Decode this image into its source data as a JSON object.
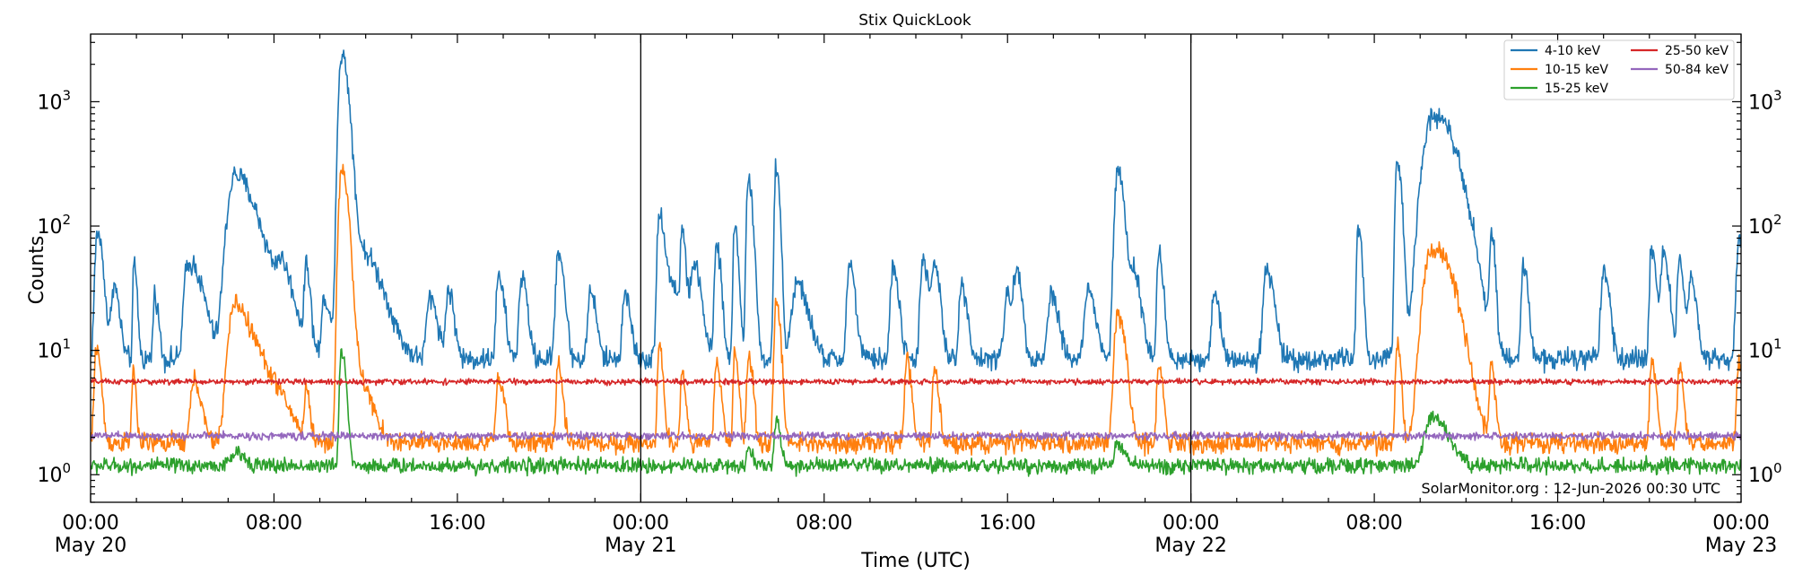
{
  "chart_data": {
    "type": "line",
    "title": "Stix QuickLook",
    "xlabel": "Time (UTC)",
    "ylabel": "Counts",
    "yscale": "log",
    "ylim": [
      0.6,
      3500
    ],
    "xlim_hours": [
      0,
      72
    ],
    "y_tick_labels": [
      {
        "value": 1,
        "base": "10",
        "exp": "0"
      },
      {
        "value": 10,
        "base": "10",
        "exp": "1"
      },
      {
        "value": 100,
        "base": "10",
        "exp": "2"
      },
      {
        "value": 1000,
        "base": "10",
        "exp": "3"
      }
    ],
    "x_ticks": [
      {
        "hour": 0,
        "time": "00:00",
        "date": "May 20"
      },
      {
        "hour": 8,
        "time": "08:00",
        "date": ""
      },
      {
        "hour": 16,
        "time": "16:00",
        "date": ""
      },
      {
        "hour": 24,
        "time": "00:00",
        "date": "May 21"
      },
      {
        "hour": 32,
        "time": "08:00",
        "date": ""
      },
      {
        "hour": 40,
        "time": "16:00",
        "date": ""
      },
      {
        "hour": 48,
        "time": "00:00",
        "date": "May 22"
      },
      {
        "hour": 56,
        "time": "08:00",
        "date": ""
      },
      {
        "hour": 64,
        "time": "16:00",
        "date": ""
      },
      {
        "hour": 72,
        "time": "00:00",
        "date": "May 23"
      }
    ],
    "day_boundaries_hours": [
      24,
      48
    ],
    "legend_position": "top-right",
    "series": [
      {
        "name": "4-10 keV",
        "color": "#1f77b4",
        "baseline": 8.5,
        "noise": 0.1,
        "peaks": [
          {
            "t": 0.3,
            "amp": 80,
            "w": 0.15
          },
          {
            "t": 1.0,
            "amp": 25,
            "w": 0.15
          },
          {
            "t": 1.9,
            "amp": 40,
            "w": 0.08
          },
          {
            "t": 2.8,
            "amp": 20,
            "w": 0.1
          },
          {
            "t": 4.2,
            "amp": 35,
            "w": 0.2
          },
          {
            "t": 4.6,
            "amp": 25,
            "w": 0.3
          },
          {
            "t": 6.3,
            "amp": 250,
            "w": 0.45
          },
          {
            "t": 7.4,
            "amp": 40,
            "w": 0.7
          },
          {
            "t": 8.3,
            "amp": 20,
            "w": 0.25
          },
          {
            "t": 9.4,
            "amp": 40,
            "w": 0.1
          },
          {
            "t": 10.2,
            "amp": 18,
            "w": 0.15
          },
          {
            "t": 10.95,
            "amp": 2400,
            "w": 0.18
          },
          {
            "t": 11.6,
            "amp": 60,
            "w": 0.6
          },
          {
            "t": 14.8,
            "amp": 18,
            "w": 0.2
          },
          {
            "t": 15.6,
            "amp": 22,
            "w": 0.15
          },
          {
            "t": 17.8,
            "amp": 30,
            "w": 0.15
          },
          {
            "t": 18.8,
            "amp": 30,
            "w": 0.15
          },
          {
            "t": 20.4,
            "amp": 55,
            "w": 0.15
          },
          {
            "t": 21.8,
            "amp": 22,
            "w": 0.15
          },
          {
            "t": 23.3,
            "amp": 20,
            "w": 0.15
          },
          {
            "t": 24.8,
            "amp": 125,
            "w": 0.12
          },
          {
            "t": 25.2,
            "amp": 30,
            "w": 0.3
          },
          {
            "t": 25.8,
            "amp": 75,
            "w": 0.1
          },
          {
            "t": 26.3,
            "amp": 40,
            "w": 0.2
          },
          {
            "t": 27.3,
            "amp": 60,
            "w": 0.12
          },
          {
            "t": 28.1,
            "amp": 90,
            "w": 0.1
          },
          {
            "t": 28.7,
            "amp": 230,
            "w": 0.12
          },
          {
            "t": 29.9,
            "amp": 280,
            "w": 0.1
          },
          {
            "t": 30.8,
            "amp": 25,
            "w": 0.3
          },
          {
            "t": 33.1,
            "amp": 40,
            "w": 0.15
          },
          {
            "t": 35.0,
            "amp": 38,
            "w": 0.15
          },
          {
            "t": 36.3,
            "amp": 45,
            "w": 0.15
          },
          {
            "t": 36.8,
            "amp": 40,
            "w": 0.15
          },
          {
            "t": 38.0,
            "amp": 25,
            "w": 0.15
          },
          {
            "t": 40.0,
            "amp": 20,
            "w": 0.2
          },
          {
            "t": 40.4,
            "amp": 30,
            "w": 0.15
          },
          {
            "t": 41.9,
            "amp": 20,
            "w": 0.2
          },
          {
            "t": 43.5,
            "amp": 22,
            "w": 0.2
          },
          {
            "t": 44.8,
            "amp": 270,
            "w": 0.18
          },
          {
            "t": 45.5,
            "amp": 30,
            "w": 0.2
          },
          {
            "t": 46.6,
            "amp": 50,
            "w": 0.12
          },
          {
            "t": 49.0,
            "amp": 20,
            "w": 0.15
          },
          {
            "t": 51.3,
            "amp": 35,
            "w": 0.2
          },
          {
            "t": 55.3,
            "amp": 95,
            "w": 0.1
          },
          {
            "t": 57.0,
            "amp": 330,
            "w": 0.12
          },
          {
            "t": 58.5,
            "amp": 720,
            "w": 0.55
          },
          {
            "t": 59.2,
            "amp": 150,
            "w": 0.5
          },
          {
            "t": 61.1,
            "amp": 75,
            "w": 0.1
          },
          {
            "t": 62.5,
            "amp": 45,
            "w": 0.12
          },
          {
            "t": 66.0,
            "amp": 35,
            "w": 0.15
          },
          {
            "t": 68.1,
            "amp": 60,
            "w": 0.12
          },
          {
            "t": 68.6,
            "amp": 55,
            "w": 0.15
          },
          {
            "t": 69.3,
            "amp": 45,
            "w": 0.12
          },
          {
            "t": 69.8,
            "amp": 30,
            "w": 0.15
          },
          {
            "t": 71.9,
            "amp": 70,
            "w": 0.15
          }
        ]
      },
      {
        "name": "10-15 keV",
        "color": "#ff7f0e",
        "baseline": 1.8,
        "noise": 0.09,
        "peaks": [
          {
            "t": 0.25,
            "amp": 9,
            "w": 0.12
          },
          {
            "t": 1.85,
            "amp": 5,
            "w": 0.08
          },
          {
            "t": 4.5,
            "amp": 4,
            "w": 0.2
          },
          {
            "t": 6.3,
            "amp": 22,
            "w": 0.4
          },
          {
            "t": 7.4,
            "amp": 5,
            "w": 0.6
          },
          {
            "t": 9.4,
            "amp": 3,
            "w": 0.1
          },
          {
            "t": 10.95,
            "amp": 290,
            "w": 0.17
          },
          {
            "t": 11.5,
            "amp": 5,
            "w": 0.4
          },
          {
            "t": 17.8,
            "amp": 4,
            "w": 0.15
          },
          {
            "t": 20.4,
            "amp": 6,
            "w": 0.12
          },
          {
            "t": 24.8,
            "amp": 9,
            "w": 0.1
          },
          {
            "t": 25.8,
            "amp": 5,
            "w": 0.1
          },
          {
            "t": 27.3,
            "amp": 6,
            "w": 0.12
          },
          {
            "t": 28.1,
            "amp": 8,
            "w": 0.1
          },
          {
            "t": 28.7,
            "amp": 7,
            "w": 0.12
          },
          {
            "t": 29.9,
            "amp": 22,
            "w": 0.12
          },
          {
            "t": 35.6,
            "amp": 7,
            "w": 0.12
          },
          {
            "t": 36.8,
            "amp": 5,
            "w": 0.12
          },
          {
            "t": 44.8,
            "amp": 18,
            "w": 0.2
          },
          {
            "t": 46.6,
            "amp": 6,
            "w": 0.12
          },
          {
            "t": 57.0,
            "amp": 10,
            "w": 0.1
          },
          {
            "t": 58.5,
            "amp": 62,
            "w": 0.5
          },
          {
            "t": 59.2,
            "amp": 10,
            "w": 0.45
          },
          {
            "t": 61.1,
            "amp": 6,
            "w": 0.1
          },
          {
            "t": 68.1,
            "amp": 6,
            "w": 0.12
          },
          {
            "t": 69.3,
            "amp": 5,
            "w": 0.12
          },
          {
            "t": 71.9,
            "amp": 6,
            "w": 0.12
          }
        ]
      },
      {
        "name": "15-25 keV",
        "color": "#2ca02c",
        "baseline": 1.18,
        "noise": 0.07,
        "peaks": [
          {
            "t": 6.3,
            "amp": 0.3,
            "w": 0.3
          },
          {
            "t": 10.95,
            "amp": 9,
            "w": 0.12
          },
          {
            "t": 28.7,
            "amp": 0.5,
            "w": 0.12
          },
          {
            "t": 29.9,
            "amp": 1.5,
            "w": 0.12
          },
          {
            "t": 44.8,
            "amp": 0.6,
            "w": 0.2
          },
          {
            "t": 58.5,
            "amp": 1.8,
            "w": 0.45
          }
        ]
      },
      {
        "name": "25-50 keV",
        "color": "#d62728",
        "baseline": 5.6,
        "noise": 0.025,
        "peaks": []
      },
      {
        "name": "50-84 keV",
        "color": "#9467bd",
        "baseline": 2.05,
        "noise": 0.035,
        "peaks": []
      }
    ]
  },
  "watermark": "SolarMonitor.org : 12-Jun-2026 00:30 UTC"
}
